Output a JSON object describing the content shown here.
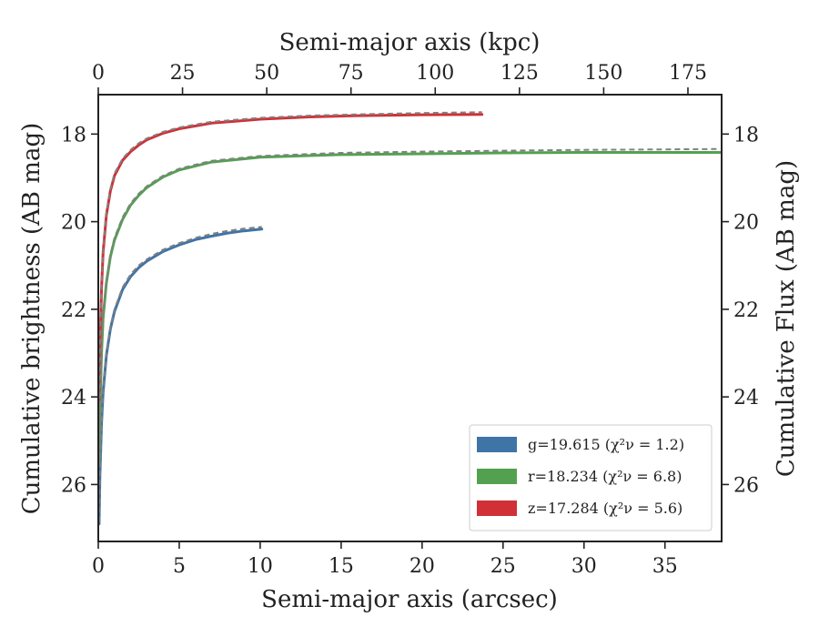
{
  "chart_data": {
    "type": "line",
    "xlabel": "Semi-major axis (arcsec)",
    "x2label": "Semi-major axis (kpc)",
    "ylabel": "Cumulative brightness (AB mag)",
    "y2label": "Cumulative Flux (AB mag)",
    "xlim": [
      0,
      38.5
    ],
    "x2lim": [
      0,
      185
    ],
    "ylim": [
      27.3,
      17.1
    ],
    "y_inverted": true,
    "x_ticks": [
      0,
      5,
      10,
      15,
      20,
      25,
      30,
      35
    ],
    "x2_ticks": [
      0,
      25,
      50,
      75,
      100,
      125,
      150,
      175
    ],
    "y_ticks": [
      18,
      20,
      22,
      24,
      26
    ],
    "grid": false,
    "legend_position": "lower-right",
    "series": [
      {
        "name": "g=19.615",
        "chi2_label": "(χ²ν = 1.2)",
        "color": "#3f74a6",
        "x": [
          0.05,
          0.1,
          0.2,
          0.3,
          0.5,
          0.75,
          1.0,
          1.5,
          2.0,
          2.5,
          3.0,
          4.0,
          5.0,
          6.0,
          7.0,
          8.0,
          9.0,
          10.1
        ],
        "y": [
          26.9,
          25.8,
          24.6,
          23.9,
          23.05,
          22.45,
          22.05,
          21.55,
          21.25,
          21.05,
          20.9,
          20.68,
          20.53,
          20.41,
          20.33,
          20.26,
          20.21,
          20.17
        ]
      },
      {
        "name": "r=18.234",
        "chi2_label": "(χ²ν = 6.8)",
        "color": "#53a150",
        "x": [
          0.05,
          0.1,
          0.2,
          0.3,
          0.5,
          0.75,
          1.0,
          1.5,
          2.0,
          2.5,
          3.0,
          4.0,
          5.0,
          7.0,
          10.0,
          15.0,
          20.0,
          25.0,
          30.0,
          35.0,
          38.4
        ],
        "y": [
          25.5,
          24.3,
          23.0,
          22.2,
          21.4,
          20.8,
          20.42,
          19.95,
          19.62,
          19.4,
          19.22,
          18.98,
          18.82,
          18.64,
          18.53,
          18.47,
          18.45,
          18.43,
          18.42,
          18.42,
          18.42
        ]
      },
      {
        "name": "z=17.284",
        "chi2_label": "(χ²ν = 5.6)",
        "color": "#d03036",
        "x": [
          0.05,
          0.1,
          0.2,
          0.3,
          0.5,
          0.75,
          1.0,
          1.5,
          2.0,
          2.5,
          3.0,
          4.0,
          5.0,
          7.0,
          10.0,
          13.0,
          16.0,
          20.0,
          23.7
        ],
        "y": [
          24.1,
          22.9,
          21.5,
          20.7,
          19.85,
          19.3,
          18.95,
          18.6,
          18.4,
          18.25,
          18.13,
          17.98,
          17.88,
          17.75,
          17.66,
          17.61,
          17.58,
          17.56,
          17.55
        ]
      }
    ],
    "model_fits": {
      "style": "dashed",
      "color": "#808080",
      "series": [
        {
          "x": [
            0.05,
            0.1,
            0.2,
            0.3,
            0.5,
            0.75,
            1.0,
            1.5,
            2.0,
            2.5,
            3.0,
            4.0,
            5.0,
            6.0,
            7.0,
            8.0,
            9.0,
            10.1
          ],
          "y": [
            26.85,
            25.75,
            24.55,
            23.85,
            23.0,
            22.4,
            22.0,
            21.5,
            21.2,
            21.0,
            20.86,
            20.64,
            20.49,
            20.37,
            20.28,
            20.21,
            20.16,
            20.12
          ]
        },
        {
          "x": [
            0.05,
            0.1,
            0.2,
            0.3,
            0.5,
            0.75,
            1.0,
            1.5,
            2.0,
            2.5,
            3.0,
            4.0,
            5.0,
            7.0,
            10.0,
            15.0,
            20.0,
            25.0,
            30.0,
            35.0,
            38.4
          ],
          "y": [
            25.45,
            24.25,
            22.95,
            22.15,
            21.35,
            20.75,
            20.37,
            19.9,
            19.58,
            19.36,
            19.19,
            18.95,
            18.79,
            18.61,
            18.5,
            18.43,
            18.4,
            18.38,
            18.36,
            18.35,
            18.34
          ]
        },
        {
          "x": [
            0.05,
            0.1,
            0.2,
            0.3,
            0.5,
            0.75,
            1.0,
            1.5,
            2.0,
            2.5,
            3.0,
            4.0,
            5.0,
            7.0,
            10.0,
            13.0,
            16.0,
            20.0,
            23.7
          ],
          "y": [
            24.05,
            22.85,
            21.45,
            20.65,
            19.8,
            19.25,
            18.9,
            18.56,
            18.36,
            18.21,
            18.1,
            17.95,
            17.85,
            17.72,
            17.63,
            17.58,
            17.55,
            17.52,
            17.5
          ]
        }
      ]
    }
  }
}
